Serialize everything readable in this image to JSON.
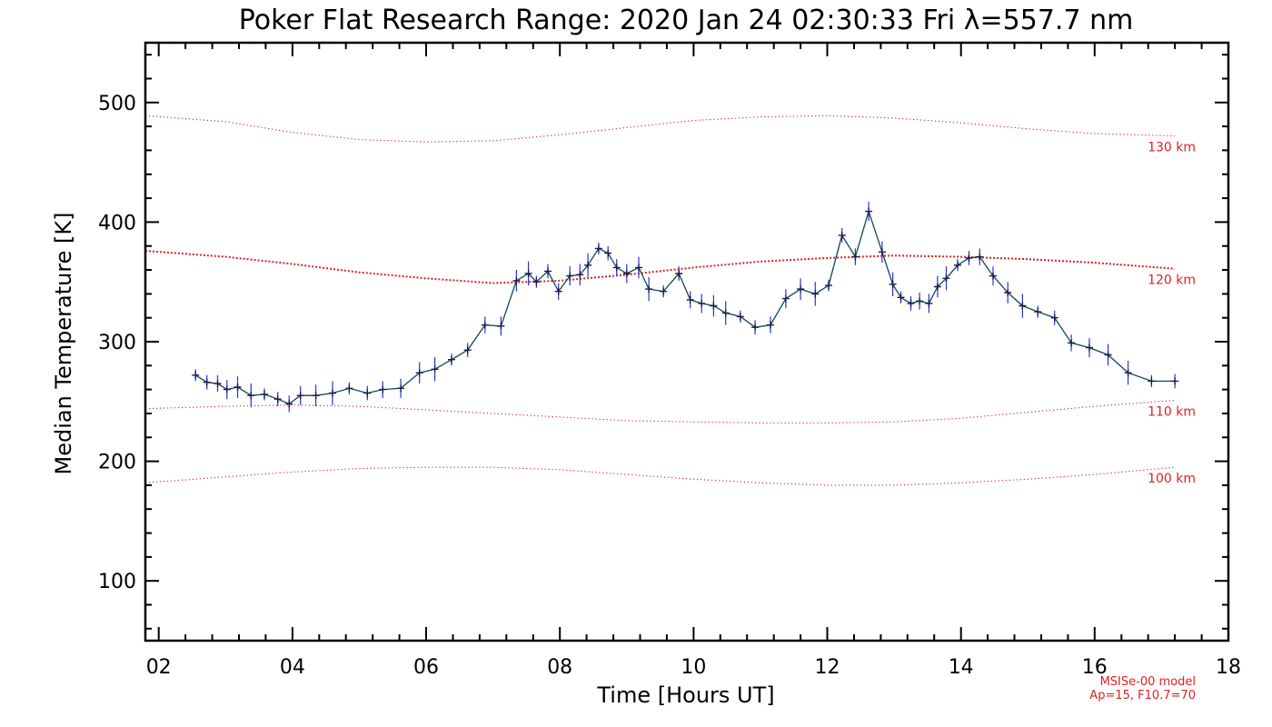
{
  "chart_data": {
    "type": "line",
    "title": "Poker Flat Research Range: 2020 Jan 24 02:30:33 Fri λ=557.7 nm",
    "xlabel": "Time [Hours UT]",
    "ylabel": "Median Temperature [K]",
    "xlim": [
      1.8,
      18
    ],
    "ylim": [
      50,
      550
    ],
    "x_ticks": [
      2,
      4,
      6,
      8,
      10,
      12,
      14,
      16,
      18
    ],
    "x_tick_labels": [
      "02",
      "04",
      "06",
      "08",
      "10",
      "12",
      "14",
      "16",
      "18"
    ],
    "y_ticks": [
      100,
      200,
      300,
      400,
      500
    ],
    "y_tick_labels": [
      "100",
      "200",
      "300",
      "400",
      "500"
    ],
    "grid": false,
    "colors": {
      "series": "#1a1a4a",
      "error_bars": "#3030e0",
      "model": "#e02020",
      "axes": "#000000"
    },
    "series": [
      {
        "x": [
          2.55,
          2.72,
          2.88,
          3.02,
          3.18,
          3.38,
          3.58,
          3.78,
          3.95,
          4.12,
          4.35,
          4.6,
          4.85,
          5.12,
          5.35,
          5.62,
          5.9,
          6.13,
          6.38,
          6.62,
          6.88,
          7.12,
          7.35,
          7.53,
          7.65,
          7.82,
          7.98,
          8.15,
          8.3,
          8.42,
          8.58,
          8.72,
          8.85,
          9.0,
          9.18,
          9.33,
          9.55,
          9.78,
          9.95,
          10.12,
          10.3,
          10.48,
          10.7,
          10.92,
          11.15,
          11.38,
          11.6,
          11.82,
          12.02,
          12.22,
          12.42,
          12.62,
          12.82,
          12.98,
          13.1,
          13.25,
          13.38,
          13.52,
          13.65,
          13.78,
          13.95,
          14.12,
          14.28,
          14.48,
          14.7,
          14.92,
          15.15,
          15.4,
          15.65,
          15.92,
          16.2,
          16.5,
          16.85,
          17.2
        ],
        "y": [
          272,
          266,
          265,
          260,
          262,
          255,
          256,
          252,
          248,
          255,
          255,
          257,
          261,
          257,
          260,
          261,
          274,
          277,
          285,
          293,
          314,
          313,
          351,
          357,
          350,
          359,
          342,
          355,
          356,
          364,
          378,
          374,
          362,
          357,
          362,
          344,
          342,
          357,
          335,
          332,
          330,
          324,
          321,
          312,
          314,
          336,
          344,
          340,
          347,
          389,
          371,
          409,
          375,
          348,
          337,
          332,
          334,
          332,
          346,
          353,
          364,
          370,
          371,
          355,
          341,
          330,
          325,
          320,
          299,
          295,
          289,
          274,
          267,
          267
        ]
      }
    ],
    "model_curves": [
      {
        "label": "130 km",
        "x": [
          1.8,
          3.0,
          4.0,
          5.0,
          6.0,
          7.0,
          8.0,
          9.0,
          10.0,
          11.0,
          12.0,
          13.0,
          14.0,
          15.0,
          16.0,
          17.2
        ],
        "y": [
          489,
          484,
          475,
          469,
          467,
          468,
          473,
          479,
          485,
          488,
          489,
          487,
          483,
          478,
          474,
          472
        ]
      },
      {
        "label": "120 km",
        "x": [
          1.8,
          3.0,
          4.0,
          5.0,
          6.0,
          7.0,
          8.0,
          9.0,
          10.0,
          11.0,
          12.0,
          13.0,
          14.0,
          15.0,
          16.0,
          17.2
        ],
        "y": [
          376,
          371,
          365,
          358,
          353,
          349,
          351,
          356,
          362,
          367,
          370,
          372,
          371,
          369,
          366,
          361
        ]
      },
      {
        "label": "110 km",
        "x": [
          1.8,
          3.0,
          4.0,
          5.0,
          6.0,
          7.0,
          8.0,
          9.0,
          10.0,
          11.0,
          12.0,
          13.0,
          14.0,
          15.0,
          16.0,
          17.2
        ],
        "y": [
          244,
          246,
          247,
          246,
          243,
          240,
          237,
          234,
          233,
          232,
          232,
          233,
          236,
          241,
          246,
          251
        ]
      },
      {
        "label": "100 km",
        "x": [
          1.8,
          3.0,
          4.0,
          5.0,
          6.0,
          7.0,
          8.0,
          9.0,
          10.0,
          11.0,
          12.0,
          13.0,
          14.0,
          15.0,
          16.0,
          17.2
        ],
        "y": [
          182,
          187,
          191,
          194,
          195,
          195,
          193,
          189,
          185,
          182,
          180,
          180,
          182,
          185,
          189,
          195
        ]
      }
    ],
    "model_note": [
      "MSISe-00 model",
      "Ap=15, F10.7=70"
    ]
  }
}
